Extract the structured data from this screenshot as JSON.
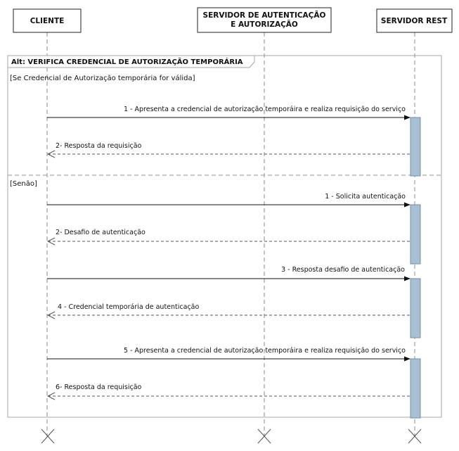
{
  "participants": [
    {
      "id": "cliente",
      "lines": [
        "CLIENTE"
      ]
    },
    {
      "id": "auth",
      "lines": [
        "SERVIDOR DE AUTENTICAÇÃO",
        "E AUTORIZAÇÃO"
      ]
    },
    {
      "id": "rest",
      "lines": [
        "SERVIDOR REST"
      ]
    }
  ],
  "fragment": {
    "title": "Alt: VERIFICA CREDENCIAL DE AUTORIZAÇÃO TEMPORÁRIA",
    "operands": [
      {
        "guard": "[Se Credencial de Autorização temporária for válida]",
        "messages": [
          {
            "label": "1 - Apresenta a credencial de autorização temporáira e realiza requisição do serviço",
            "from": "cliente",
            "to": "rest",
            "kind": "sync"
          },
          {
            "label": "2- Resposta da requisição",
            "from": "rest",
            "to": "cliente",
            "kind": "return"
          }
        ]
      },
      {
        "guard": "[Senão]",
        "messages": [
          {
            "label": "1 - Solicita autenticação",
            "from": "cliente",
            "to": "rest",
            "kind": "sync"
          },
          {
            "label": "2- Desafio de autenticação",
            "from": "rest",
            "to": "cliente",
            "kind": "return"
          },
          {
            "label": "3 - Resposta desafio de autenticação",
            "from": "cliente",
            "to": "rest",
            "kind": "sync"
          },
          {
            "label": "4 - Credencial temporária de autenticação",
            "from": "rest",
            "to": "cliente",
            "kind": "return"
          },
          {
            "label": "5 - Apresenta a credencial de autorização temporáira e realiza requisição do serviço",
            "from": "cliente",
            "to": "rest",
            "kind": "sync"
          },
          {
            "label": "6- Resposta da requisição",
            "from": "rest",
            "to": "cliente",
            "kind": "return"
          }
        ]
      }
    ]
  },
  "colors": {
    "activation_fill": "#a9c0d3",
    "activation_stroke": "#6f8ea8",
    "frame": "#a6a6a6",
    "lifeline": "#8a8a8a"
  }
}
